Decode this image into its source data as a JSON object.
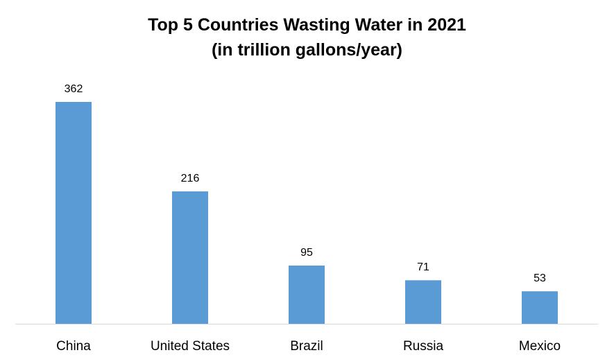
{
  "chart_data": {
    "type": "bar",
    "title": "Top 5 Countries Wasting Water in 2021",
    "subtitle": "(in trillion gallons/year)",
    "categories": [
      "China",
      "United States",
      "Brazil",
      "Russia",
      "Mexico"
    ],
    "values": [
      362,
      216,
      95,
      71,
      53
    ],
    "data_labels": [
      "362",
      "216",
      "95",
      "71",
      "53"
    ],
    "xlabel": "",
    "ylabel": "",
    "ylim": [
      0,
      362
    ],
    "grid": false,
    "legend": "none",
    "bar_color": "#5b9bd5",
    "axis_color": "#d9d9d9"
  }
}
